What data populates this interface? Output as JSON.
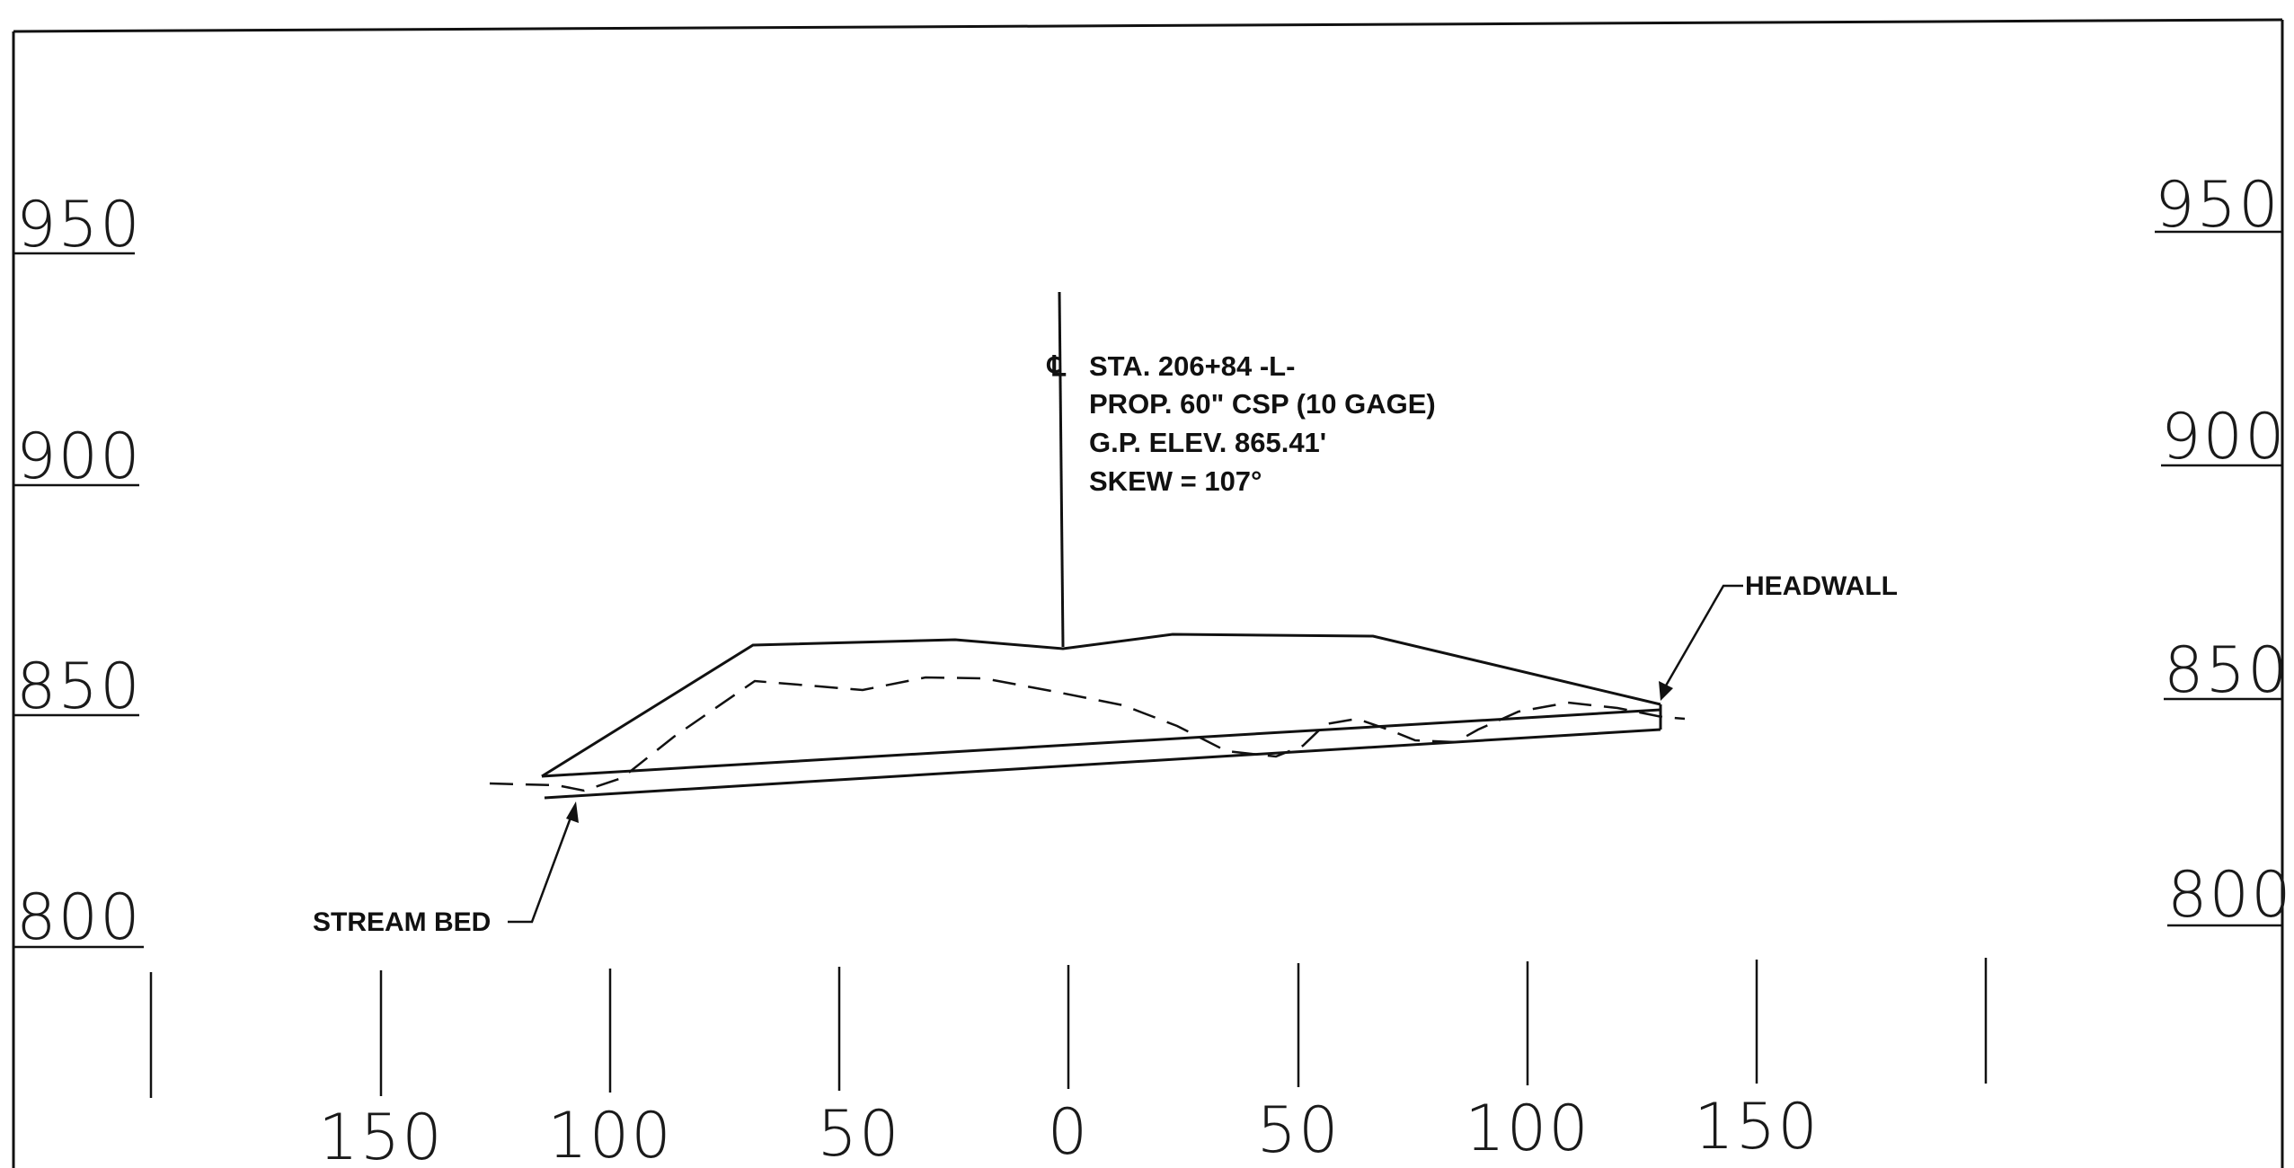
{
  "elevation_labels_left": [
    "950",
    "900",
    "850",
    "800"
  ],
  "elevation_labels_right": [
    "950",
    "900",
    "850",
    "800"
  ],
  "offset_labels": [
    "150",
    "100",
    "50",
    "0",
    "50",
    "100",
    "150"
  ],
  "centerline_symbol": "℄",
  "culvert_notes": {
    "station": "STA. 206+84 -L-",
    "pipe": "PROP. 60\" CSP (10 GAGE)",
    "grade_point": "G.P. ELEV. 865.41'",
    "skew": "SKEW  =  107°"
  },
  "callouts": {
    "headwall": "HEADWALL",
    "stream_bed": "STREAM  BED"
  }
}
